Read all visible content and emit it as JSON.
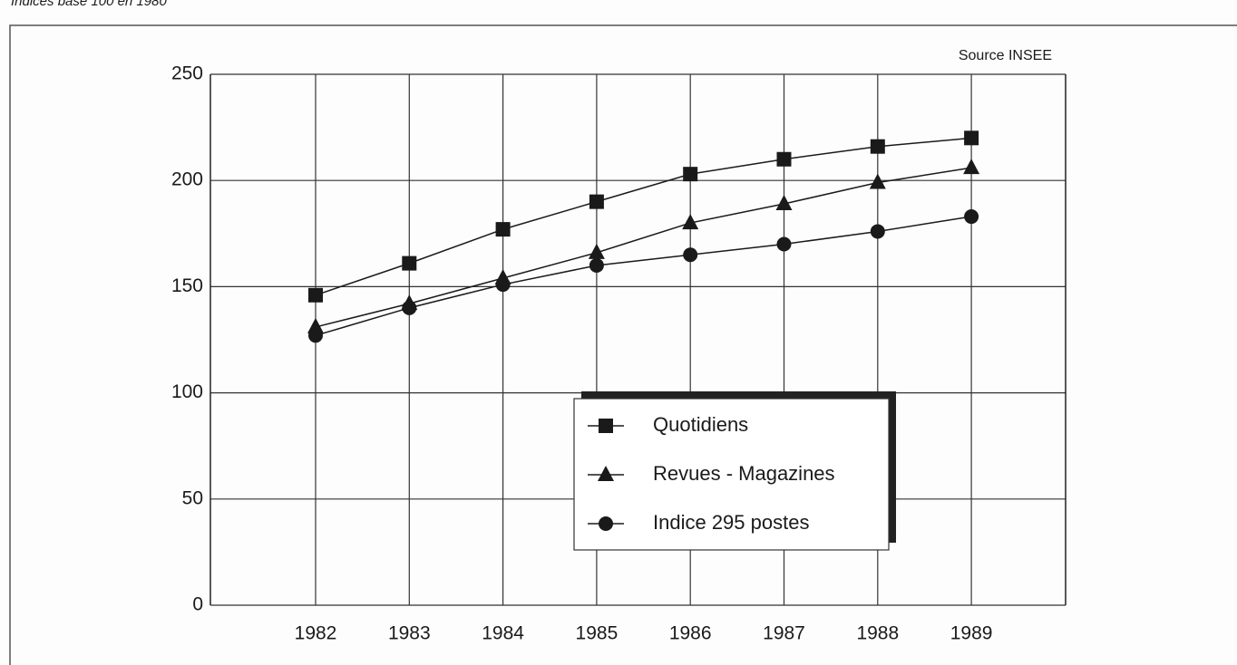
{
  "chart_data": {
    "type": "line",
    "subtitle": "Indices base 100 en 1980",
    "source": "Source INSEE",
    "categories": [
      "1982",
      "1983",
      "1984",
      "1985",
      "1986",
      "1987",
      "1988",
      "1989"
    ],
    "series": [
      {
        "name": "Quotidiens",
        "color": "#1a1a1a",
        "marker": "square",
        "values": [
          146,
          161,
          177,
          190,
          203,
          210,
          216,
          220
        ]
      },
      {
        "name": "Revues - Magazines",
        "color": "#1a1a1a",
        "marker": "triangle",
        "values": [
          131,
          142,
          154,
          166,
          180,
          189,
          199,
          206
        ]
      },
      {
        "name": "Indice 295 postes",
        "color": "#1a1a1a",
        "marker": "circle",
        "values": [
          127,
          140,
          151,
          160,
          165,
          170,
          176,
          183
        ]
      }
    ],
    "ylim": [
      0,
      250
    ],
    "yticks": [
      0,
      50,
      100,
      150,
      200,
      250
    ],
    "grid": true
  }
}
